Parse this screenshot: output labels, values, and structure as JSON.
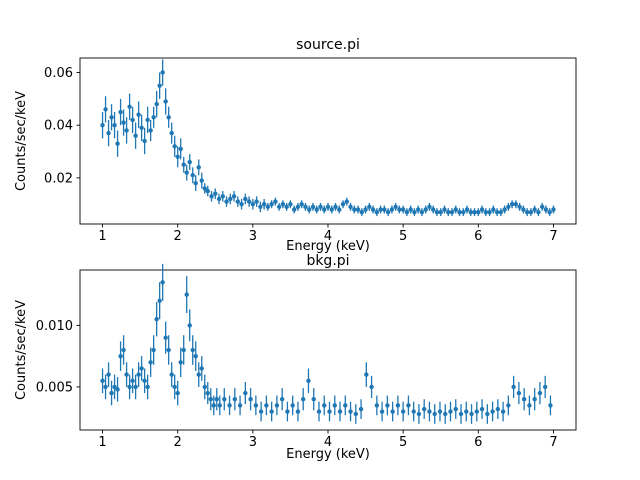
{
  "figure": {
    "background": "#ffffff",
    "accent_color": "#1f77b4"
  },
  "chart_data": [
    {
      "type": "scatter",
      "title": "source.pi",
      "xlabel": "Energy (keV)",
      "ylabel": "Counts/sec/keV",
      "xlim": [
        0.7,
        7.3
      ],
      "ylim": [
        0.0025,
        0.0655
      ],
      "xticks": [
        1,
        2,
        3,
        4,
        5,
        6,
        7
      ],
      "xtick_labels": [
        "1",
        "2",
        "3",
        "4",
        "5",
        "6",
        "7"
      ],
      "yticks": [
        0.02,
        0.04,
        0.06
      ],
      "ytick_labels": [
        "0.02",
        "0.04",
        "0.06"
      ],
      "grid": false,
      "legend": "none",
      "marker": "circle",
      "error_bars": true,
      "color": "#1f77b4",
      "points": [
        [
          1.0,
          0.04,
          0.005
        ],
        [
          1.04,
          0.046,
          0.005
        ],
        [
          1.08,
          0.037,
          0.005
        ],
        [
          1.12,
          0.043,
          0.005
        ],
        [
          1.16,
          0.04,
          0.005
        ],
        [
          1.2,
          0.033,
          0.005
        ],
        [
          1.24,
          0.045,
          0.005
        ],
        [
          1.28,
          0.041,
          0.005
        ],
        [
          1.32,
          0.038,
          0.005
        ],
        [
          1.36,
          0.047,
          0.005
        ],
        [
          1.4,
          0.042,
          0.005
        ],
        [
          1.44,
          0.036,
          0.005
        ],
        [
          1.48,
          0.044,
          0.005
        ],
        [
          1.52,
          0.039,
          0.005
        ],
        [
          1.56,
          0.034,
          0.005
        ],
        [
          1.6,
          0.042,
          0.005
        ],
        [
          1.64,
          0.038,
          0.004
        ],
        [
          1.68,
          0.043,
          0.004
        ],
        [
          1.72,
          0.048,
          0.005
        ],
        [
          1.76,
          0.055,
          0.005
        ],
        [
          1.8,
          0.06,
          0.005
        ],
        [
          1.84,
          0.049,
          0.005
        ],
        [
          1.88,
          0.043,
          0.004
        ],
        [
          1.92,
          0.037,
          0.004
        ],
        [
          1.96,
          0.032,
          0.004
        ],
        [
          2.0,
          0.028,
          0.004
        ],
        [
          2.04,
          0.031,
          0.004
        ],
        [
          2.08,
          0.025,
          0.003
        ],
        [
          2.12,
          0.022,
          0.003
        ],
        [
          2.16,
          0.026,
          0.003
        ],
        [
          2.2,
          0.021,
          0.003
        ],
        [
          2.24,
          0.018,
          0.003
        ],
        [
          2.28,
          0.024,
          0.003
        ],
        [
          2.32,
          0.019,
          0.003
        ],
        [
          2.36,
          0.016,
          0.002
        ],
        [
          2.4,
          0.015,
          0.002
        ],
        [
          2.45,
          0.013,
          0.002
        ],
        [
          2.5,
          0.014,
          0.002
        ],
        [
          2.55,
          0.012,
          0.002
        ],
        [
          2.6,
          0.013,
          0.002
        ],
        [
          2.65,
          0.011,
          0.002
        ],
        [
          2.7,
          0.012,
          0.002
        ],
        [
          2.75,
          0.013,
          0.002
        ],
        [
          2.8,
          0.011,
          0.002
        ],
        [
          2.85,
          0.01,
          0.002
        ],
        [
          2.9,
          0.012,
          0.002
        ],
        [
          2.95,
          0.011,
          0.002
        ],
        [
          3.0,
          0.01,
          0.002
        ],
        [
          3.05,
          0.011,
          0.002
        ],
        [
          3.1,
          0.009,
          0.002
        ],
        [
          3.15,
          0.01,
          0.002
        ],
        [
          3.2,
          0.009,
          0.0015
        ],
        [
          3.25,
          0.01,
          0.0015
        ],
        [
          3.3,
          0.011,
          0.0015
        ],
        [
          3.35,
          0.009,
          0.0015
        ],
        [
          3.4,
          0.01,
          0.0015
        ],
        [
          3.45,
          0.009,
          0.0015
        ],
        [
          3.5,
          0.01,
          0.0015
        ],
        [
          3.55,
          0.008,
          0.0015
        ],
        [
          3.6,
          0.009,
          0.0015
        ],
        [
          3.65,
          0.01,
          0.0015
        ],
        [
          3.7,
          0.009,
          0.0015
        ],
        [
          3.75,
          0.008,
          0.0015
        ],
        [
          3.8,
          0.009,
          0.0015
        ],
        [
          3.85,
          0.008,
          0.0015
        ],
        [
          3.9,
          0.009,
          0.0015
        ],
        [
          3.95,
          0.008,
          0.0015
        ],
        [
          4.0,
          0.009,
          0.0015
        ],
        [
          4.05,
          0.008,
          0.0015
        ],
        [
          4.1,
          0.009,
          0.0015
        ],
        [
          4.15,
          0.008,
          0.0015
        ],
        [
          4.2,
          0.01,
          0.0015
        ],
        [
          4.25,
          0.011,
          0.0015
        ],
        [
          4.3,
          0.009,
          0.0015
        ],
        [
          4.35,
          0.008,
          0.0015
        ],
        [
          4.4,
          0.008,
          0.0015
        ],
        [
          4.45,
          0.007,
          0.0015
        ],
        [
          4.5,
          0.008,
          0.0015
        ],
        [
          4.55,
          0.009,
          0.0015
        ],
        [
          4.6,
          0.008,
          0.0015
        ],
        [
          4.65,
          0.007,
          0.0015
        ],
        [
          4.7,
          0.008,
          0.0015
        ],
        [
          4.75,
          0.008,
          0.0015
        ],
        [
          4.8,
          0.007,
          0.0015
        ],
        [
          4.85,
          0.008,
          0.0015
        ],
        [
          4.9,
          0.009,
          0.0015
        ],
        [
          4.95,
          0.008,
          0.0015
        ],
        [
          5.0,
          0.008,
          0.0015
        ],
        [
          5.05,
          0.007,
          0.0015
        ],
        [
          5.1,
          0.008,
          0.0015
        ],
        [
          5.15,
          0.007,
          0.0015
        ],
        [
          5.2,
          0.008,
          0.0015
        ],
        [
          5.25,
          0.007,
          0.0015
        ],
        [
          5.3,
          0.008,
          0.0015
        ],
        [
          5.35,
          0.009,
          0.0015
        ],
        [
          5.4,
          0.008,
          0.0015
        ],
        [
          5.45,
          0.007,
          0.0015
        ],
        [
          5.5,
          0.007,
          0.0015
        ],
        [
          5.55,
          0.008,
          0.0015
        ],
        [
          5.6,
          0.007,
          0.0015
        ],
        [
          5.65,
          0.007,
          0.0015
        ],
        [
          5.7,
          0.008,
          0.0015
        ],
        [
          5.75,
          0.007,
          0.0015
        ],
        [
          5.8,
          0.007,
          0.0015
        ],
        [
          5.85,
          0.008,
          0.0015
        ],
        [
          5.9,
          0.007,
          0.0015
        ],
        [
          5.95,
          0.007,
          0.0015
        ],
        [
          6.0,
          0.007,
          0.0015
        ],
        [
          6.05,
          0.008,
          0.0015
        ],
        [
          6.1,
          0.007,
          0.0015
        ],
        [
          6.15,
          0.007,
          0.0015
        ],
        [
          6.2,
          0.008,
          0.0015
        ],
        [
          6.25,
          0.007,
          0.0015
        ],
        [
          6.3,
          0.007,
          0.0015
        ],
        [
          6.35,
          0.008,
          0.0015
        ],
        [
          6.4,
          0.009,
          0.0015
        ],
        [
          6.45,
          0.01,
          0.0015
        ],
        [
          6.5,
          0.01,
          0.0015
        ],
        [
          6.55,
          0.009,
          0.0015
        ],
        [
          6.6,
          0.008,
          0.0015
        ],
        [
          6.65,
          0.007,
          0.0015
        ],
        [
          6.7,
          0.007,
          0.0015
        ],
        [
          6.75,
          0.008,
          0.0015
        ],
        [
          6.8,
          0.007,
          0.0015
        ],
        [
          6.85,
          0.009,
          0.0015
        ],
        [
          6.9,
          0.008,
          0.0015
        ],
        [
          6.95,
          0.007,
          0.0015
        ],
        [
          7.0,
          0.008,
          0.0015
        ]
      ]
    },
    {
      "type": "scatter",
      "title": "bkg.pi",
      "xlabel": "Energy (keV)",
      "ylabel": "Counts/sec/keV",
      "xlim": [
        0.7,
        7.3
      ],
      "ylim": [
        0.0015,
        0.0145
      ],
      "xticks": [
        1,
        2,
        3,
        4,
        5,
        6,
        7
      ],
      "xtick_labels": [
        "1",
        "2",
        "3",
        "4",
        "5",
        "6",
        "7"
      ],
      "yticks": [
        0.005,
        0.01
      ],
      "ytick_labels": [
        "0.005",
        "0.010"
      ],
      "grid": false,
      "legend": "none",
      "marker": "circle",
      "error_bars": true,
      "color": "#1f77b4",
      "points": [
        [
          1.0,
          0.0055,
          0.001
        ],
        [
          1.04,
          0.005,
          0.001
        ],
        [
          1.08,
          0.006,
          0.001
        ],
        [
          1.12,
          0.0045,
          0.001
        ],
        [
          1.16,
          0.005,
          0.001
        ],
        [
          1.2,
          0.0048,
          0.001
        ],
        [
          1.24,
          0.0075,
          0.0012
        ],
        [
          1.28,
          0.008,
          0.0012
        ],
        [
          1.32,
          0.006,
          0.001
        ],
        [
          1.36,
          0.005,
          0.001
        ],
        [
          1.4,
          0.0055,
          0.001
        ],
        [
          1.44,
          0.005,
          0.001
        ],
        [
          1.48,
          0.006,
          0.001
        ],
        [
          1.52,
          0.0065,
          0.001
        ],
        [
          1.56,
          0.0055,
          0.001
        ],
        [
          1.6,
          0.005,
          0.001
        ],
        [
          1.64,
          0.007,
          0.0012
        ],
        [
          1.68,
          0.008,
          0.0012
        ],
        [
          1.72,
          0.0105,
          0.0014
        ],
        [
          1.76,
          0.012,
          0.0015
        ],
        [
          1.8,
          0.0135,
          0.0015
        ],
        [
          1.84,
          0.009,
          0.0013
        ],
        [
          1.88,
          0.008,
          0.0012
        ],
        [
          1.92,
          0.006,
          0.001
        ],
        [
          1.96,
          0.005,
          0.001
        ],
        [
          2.0,
          0.0045,
          0.001
        ],
        [
          2.04,
          0.007,
          0.0012
        ],
        [
          2.08,
          0.008,
          0.0012
        ],
        [
          2.12,
          0.0125,
          0.0015
        ],
        [
          2.16,
          0.01,
          0.0013
        ],
        [
          2.2,
          0.008,
          0.0012
        ],
        [
          2.24,
          0.0075,
          0.0012
        ],
        [
          2.28,
          0.006,
          0.001
        ],
        [
          2.32,
          0.0065,
          0.001
        ],
        [
          2.36,
          0.005,
          0.001
        ],
        [
          2.4,
          0.0045,
          0.0009
        ],
        [
          2.44,
          0.004,
          0.0009
        ],
        [
          2.48,
          0.0035,
          0.0008
        ],
        [
          2.52,
          0.004,
          0.0009
        ],
        [
          2.56,
          0.0035,
          0.0008
        ],
        [
          2.62,
          0.004,
          0.0009
        ],
        [
          2.69,
          0.0035,
          0.0008
        ],
        [
          2.76,
          0.004,
          0.0009
        ],
        [
          2.83,
          0.0035,
          0.0008
        ],
        [
          2.9,
          0.0045,
          0.0009
        ],
        [
          2.97,
          0.004,
          0.0009
        ],
        [
          3.04,
          0.0035,
          0.0008
        ],
        [
          3.11,
          0.003,
          0.0008
        ],
        [
          3.18,
          0.0035,
          0.0008
        ],
        [
          3.25,
          0.003,
          0.0008
        ],
        [
          3.32,
          0.0035,
          0.0008
        ],
        [
          3.39,
          0.004,
          0.0009
        ],
        [
          3.46,
          0.003,
          0.0008
        ],
        [
          3.53,
          0.0035,
          0.0008
        ],
        [
          3.6,
          0.003,
          0.0008
        ],
        [
          3.67,
          0.004,
          0.0009
        ],
        [
          3.74,
          0.0055,
          0.001
        ],
        [
          3.81,
          0.004,
          0.0009
        ],
        [
          3.88,
          0.003,
          0.0008
        ],
        [
          3.95,
          0.0035,
          0.0008
        ],
        [
          4.02,
          0.003,
          0.0008
        ],
        [
          4.09,
          0.0035,
          0.0008
        ],
        [
          4.16,
          0.003,
          0.0008
        ],
        [
          4.23,
          0.0035,
          0.0008
        ],
        [
          4.3,
          0.003,
          0.0008
        ],
        [
          4.37,
          0.0028,
          0.0008
        ],
        [
          4.44,
          0.0032,
          0.0008
        ],
        [
          4.51,
          0.006,
          0.001
        ],
        [
          4.58,
          0.005,
          0.0009
        ],
        [
          4.65,
          0.0035,
          0.0008
        ],
        [
          4.72,
          0.003,
          0.0008
        ],
        [
          4.79,
          0.0035,
          0.0008
        ],
        [
          4.86,
          0.003,
          0.0008
        ],
        [
          4.93,
          0.0035,
          0.0008
        ],
        [
          5.0,
          0.003,
          0.0008
        ],
        [
          5.07,
          0.0035,
          0.0008
        ],
        [
          5.14,
          0.003,
          0.0008
        ],
        [
          5.21,
          0.0028,
          0.0008
        ],
        [
          5.28,
          0.0032,
          0.0008
        ],
        [
          5.35,
          0.003,
          0.0008
        ],
        [
          5.42,
          0.0028,
          0.0008
        ],
        [
          5.49,
          0.003,
          0.0008
        ],
        [
          5.56,
          0.0028,
          0.0008
        ],
        [
          5.63,
          0.003,
          0.0008
        ],
        [
          5.7,
          0.0032,
          0.0008
        ],
        [
          5.77,
          0.0028,
          0.0008
        ],
        [
          5.84,
          0.003,
          0.0008
        ],
        [
          5.91,
          0.0028,
          0.0008
        ],
        [
          5.98,
          0.003,
          0.0008
        ],
        [
          6.05,
          0.0032,
          0.0008
        ],
        [
          6.12,
          0.0028,
          0.0008
        ],
        [
          6.19,
          0.003,
          0.0008
        ],
        [
          6.26,
          0.0032,
          0.0008
        ],
        [
          6.33,
          0.003,
          0.0008
        ],
        [
          6.4,
          0.0035,
          0.0008
        ],
        [
          6.47,
          0.005,
          0.0009
        ],
        [
          6.54,
          0.0045,
          0.0009
        ],
        [
          6.61,
          0.004,
          0.0009
        ],
        [
          6.68,
          0.0035,
          0.0008
        ],
        [
          6.75,
          0.004,
          0.0009
        ],
        [
          6.82,
          0.0045,
          0.0009
        ],
        [
          6.89,
          0.005,
          0.0009
        ],
        [
          6.96,
          0.0035,
          0.0008
        ]
      ]
    }
  ]
}
